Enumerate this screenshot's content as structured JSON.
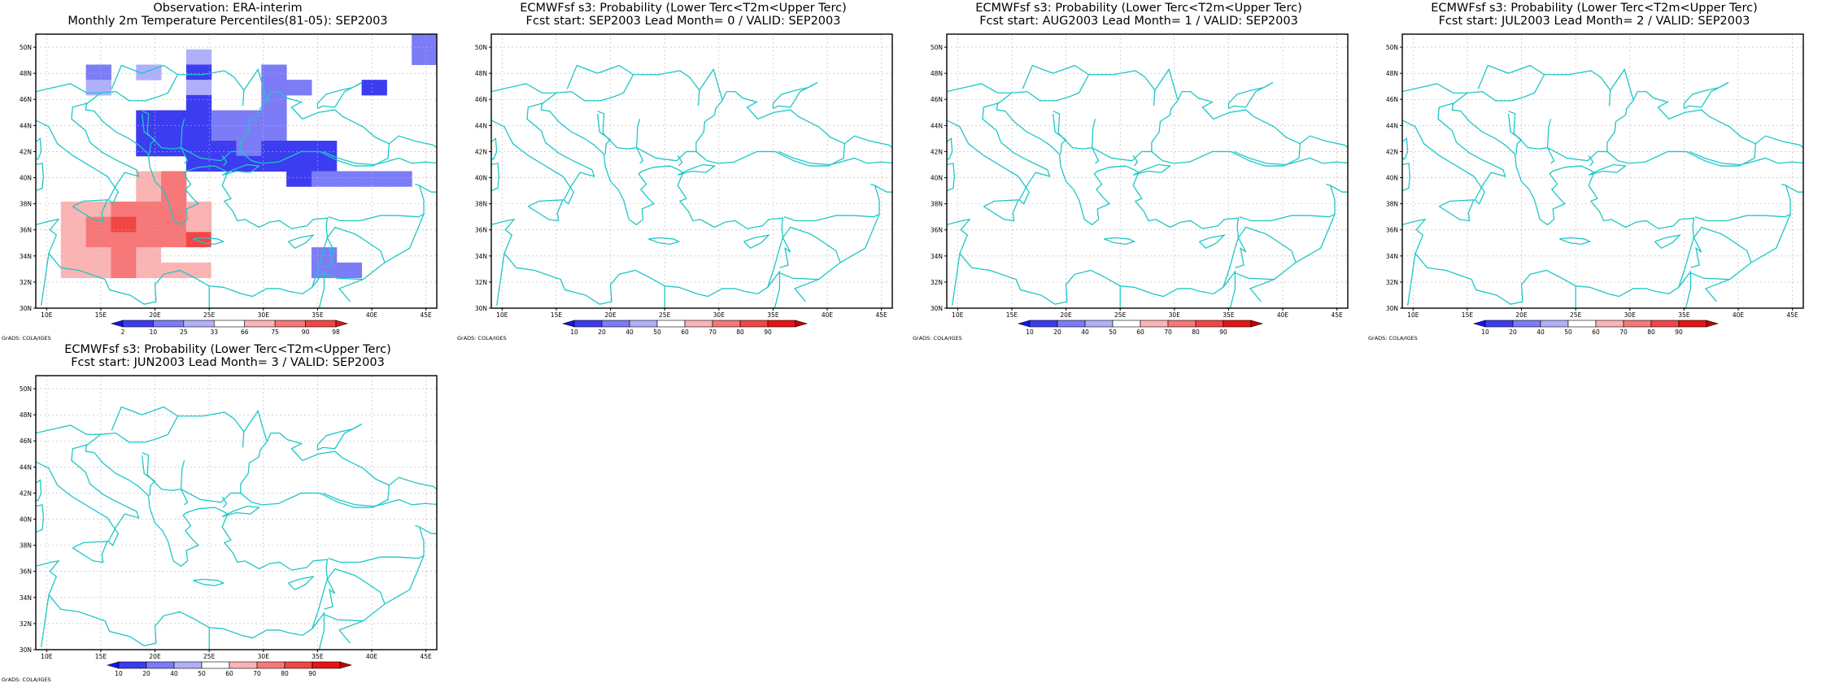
{
  "colors": {
    "coast": "#1ec7c7",
    "frame": "#000000",
    "grid": "#b4b4b4",
    "pct_scale": [
      "#1414f0",
      "#3c3cf0",
      "#7c7cf6",
      "#b0b0fa",
      "#ffffff",
      "#fab4b4",
      "#f67878",
      "#f04646",
      "#e61414"
    ],
    "prob_scale": [
      "#1414f0",
      "#3c3cf0",
      "#7c7cf6",
      "#b0b0fa",
      "#ffffff",
      "#fab4b4",
      "#f67878",
      "#f04646",
      "#e61414",
      "#c80000"
    ]
  },
  "axes": {
    "lon_labels": [
      "10E",
      "15E",
      "20E",
      "25E",
      "30E",
      "35E",
      "40E",
      "45E"
    ],
    "lat_labels": [
      "30N",
      "32N",
      "34N",
      "36N",
      "38N",
      "40N",
      "42N",
      "44N",
      "46N",
      "48N",
      "50N"
    ],
    "lon_range": [
      9,
      46
    ],
    "lat_range": [
      30,
      51
    ]
  },
  "credit": "GrADS: COLA/IGES",
  "panels": [
    {
      "id": "obs",
      "title1": "Observation: ERA-interim",
      "title2": "Monthly 2m Temperature Percentiles(81-05): SEP2003",
      "scale": "pct",
      "colorbar_labels": [
        "2",
        "10",
        "25",
        "33",
        "66",
        "75",
        "90",
        "98"
      ],
      "grid": [
        "0000000000000003",
        "0050504000000003",
        "0030402003000000",
        "0040004003300200",
        "0000002003000000",
        "0000222333000000",
        "0000222333000000",
        "0000222232220000",
        "0000002222220000",
        "5000670000233330",
        "0000670000000000",
        "0667776000000000",
        "0678776000005005",
        "0677778550000000",
        "0667655500530000",
        "0667666500033000",
        "0000000000000000",
        "0000000000000000"
      ]
    },
    {
      "id": "lead0",
      "title1": "ECMWFsf s3: Probability (Lower Terc<T2m<Upper Terc)",
      "title2": "Fcst start: SEP2003   Lead Month= 0 / VALID: SEP2003",
      "scale": "prob",
      "colorbar_labels": [
        "10",
        "20",
        "40",
        "50",
        "60",
        "70",
        "80",
        "90"
      ],
      "grid": [
        "0000000000000000",
        "0000000000000000",
        "0000000000000000",
        "0000000000000000",
        "0000000000000000",
        "0000000000000000",
        "0000000000000000",
        "0000000000000000",
        "0000000000000000",
        "0000000000000000",
        "0000000000000000",
        "0000000000000000",
        "0000000000000000",
        "0000000000000000",
        "0000000000000000",
        "0000000000000000",
        "0000000000000000",
        "0000000000000000"
      ]
    },
    {
      "id": "lead1",
      "title1": "ECMWFsf s3: Probability (Lower Terc<T2m<Upper Terc)",
      "title2": "Fcst start: AUG2003   Lead Month= 1 / VALID: SEP2003",
      "scale": "prob",
      "colorbar_labels": [
        "10",
        "20",
        "40",
        "50",
        "60",
        "70",
        "80",
        "90"
      ],
      "grid": [
        "0000000000000000",
        "0000000000000000",
        "0000000000000000",
        "0000000000000000",
        "0000000000000000",
        "0000000000000000",
        "0000000000000000",
        "0000000000000000",
        "0000000000000000",
        "0000000000000000",
        "0000000000000000",
        "0000000000000000",
        "0000000000000000",
        "0000000000000000",
        "0000000000000000",
        "0000000000000000",
        "0000000000000000",
        "0000000000000000"
      ]
    },
    {
      "id": "lead2",
      "title1": "ECMWFsf s3: Probability (Lower Terc<T2m<Upper Terc)",
      "title2": "Fcst start: JUL2003   Lead Month= 2 / VALID: SEP2003",
      "scale": "prob",
      "colorbar_labels": [
        "10",
        "20",
        "40",
        "50",
        "60",
        "70",
        "80",
        "90"
      ],
      "grid": [
        "0000000000000000",
        "0000000000000000",
        "0000000000000000",
        "0000000000000000",
        "0000000000000000",
        "0000000000000000",
        "0000000000000000",
        "0000000000000000",
        "0000000000000000",
        "0000000000000000",
        "0000000000000000",
        "0000000000000000",
        "0000000000000000",
        "0000000000000000",
        "0000000000000000",
        "0000000000000000",
        "0000000000000000",
        "0000000000000000"
      ]
    },
    {
      "id": "lead3",
      "title1": "ECMWFsf s3: Probability (Lower Terc<T2m<Upper Terc)",
      "title2": "Fcst start: JUN2003   Lead Month= 3 / VALID: SEP2003",
      "scale": "prob",
      "colorbar_labels": [
        "10",
        "20",
        "40",
        "50",
        "60",
        "70",
        "80",
        "90"
      ],
      "grid": [
        "0000000000000000",
        "0000000000000000",
        "0000000000000000",
        "0000000000000000",
        "0000000000000000",
        "0000000000000000",
        "0000000000000000",
        "0000000000000000",
        "0000000000000000",
        "0000000000000000",
        "0000000000000000",
        "0000000000000000",
        "0000000000000000",
        "0000000000000000",
        "0000000000000000",
        "0000000000000000",
        "0000000000000000",
        "0000000000000000"
      ]
    }
  ]
}
